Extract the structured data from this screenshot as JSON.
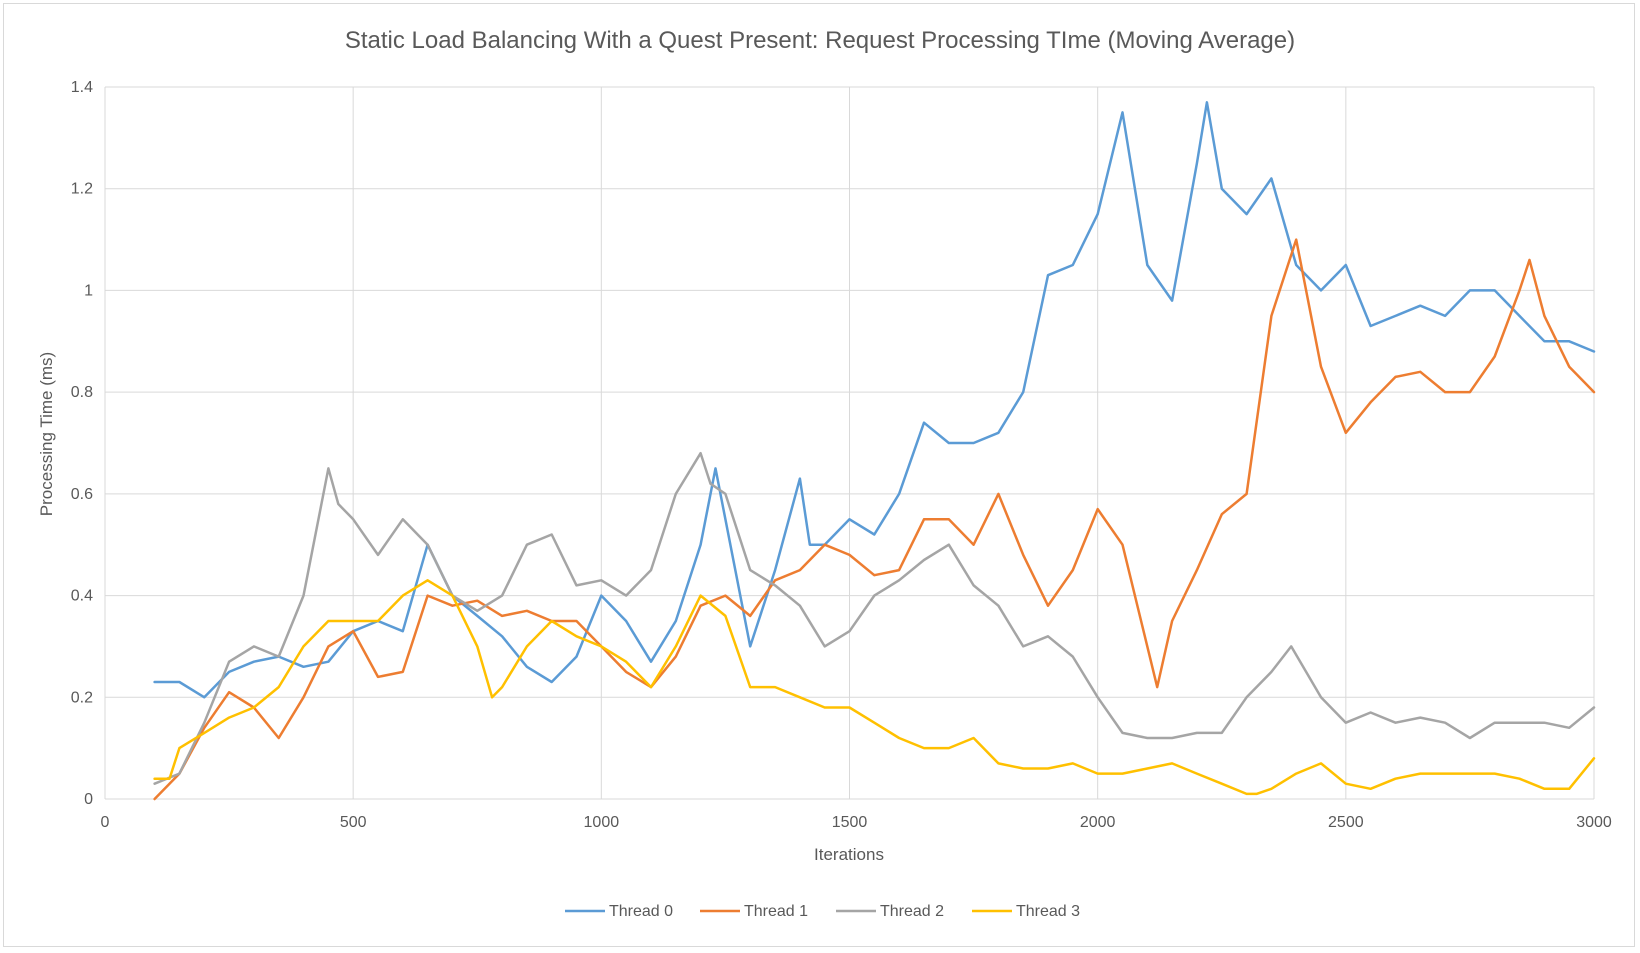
{
  "chart_data": {
    "type": "line",
    "title": "Static Load Balancing With a Quest Present: Request Processing TIme (Moving Average)",
    "xlabel": "Iterations",
    "ylabel": "Processing Time (ms)",
    "xlim": [
      0,
      3000
    ],
    "ylim": [
      0,
      1.4
    ],
    "xticks": [
      0,
      500,
      1000,
      1500,
      2000,
      2500,
      3000
    ],
    "yticks": [
      0,
      0.2,
      0.4,
      0.6,
      0.8,
      1,
      1.2,
      1.4
    ],
    "grid": true,
    "legend_position": "bottom",
    "series": [
      {
        "name": "Thread 0",
        "color": "#5b9bd5",
        "x": [
          100,
          150,
          200,
          250,
          300,
          350,
          400,
          450,
          500,
          550,
          600,
          650,
          700,
          750,
          800,
          850,
          900,
          950,
          1000,
          1050,
          1100,
          1150,
          1200,
          1230,
          1250,
          1300,
          1350,
          1400,
          1420,
          1450,
          1500,
          1550,
          1600,
          1650,
          1700,
          1750,
          1800,
          1850,
          1900,
          1950,
          2000,
          2050,
          2100,
          2150,
          2200,
          2220,
          2250,
          2300,
          2350,
          2400,
          2450,
          2500,
          2550,
          2600,
          2650,
          2700,
          2750,
          2800,
          2850,
          2900,
          2950,
          3000
        ],
        "y": [
          0.23,
          0.23,
          0.2,
          0.25,
          0.27,
          0.28,
          0.26,
          0.27,
          0.33,
          0.35,
          0.33,
          0.5,
          0.4,
          0.36,
          0.32,
          0.26,
          0.23,
          0.28,
          0.4,
          0.35,
          0.27,
          0.35,
          0.5,
          0.65,
          0.55,
          0.3,
          0.45,
          0.63,
          0.5,
          0.5,
          0.55,
          0.52,
          0.6,
          0.74,
          0.7,
          0.7,
          0.72,
          0.8,
          1.03,
          1.05,
          1.15,
          1.35,
          1.05,
          0.98,
          1.25,
          1.37,
          1.2,
          1.15,
          1.22,
          1.05,
          1.0,
          1.05,
          0.93,
          0.95,
          0.97,
          0.95,
          1.0,
          1.0,
          0.95,
          0.9,
          0.9,
          0.88
        ]
      },
      {
        "name": "Thread 1",
        "color": "#ed7d31",
        "x": [
          100,
          150,
          200,
          250,
          300,
          350,
          400,
          450,
          500,
          550,
          600,
          650,
          700,
          750,
          800,
          850,
          900,
          950,
          1000,
          1050,
          1100,
          1150,
          1200,
          1250,
          1300,
          1350,
          1400,
          1450,
          1500,
          1550,
          1600,
          1650,
          1700,
          1750,
          1800,
          1850,
          1900,
          1950,
          2000,
          2050,
          2100,
          2120,
          2150,
          2200,
          2250,
          2300,
          2350,
          2400,
          2450,
          2500,
          2550,
          2600,
          2650,
          2700,
          2750,
          2800,
          2850,
          2870,
          2900,
          2950,
          3000
        ],
        "y": [
          0.0,
          0.05,
          0.14,
          0.21,
          0.18,
          0.12,
          0.2,
          0.3,
          0.33,
          0.24,
          0.25,
          0.4,
          0.38,
          0.39,
          0.36,
          0.37,
          0.35,
          0.35,
          0.3,
          0.25,
          0.22,
          0.28,
          0.38,
          0.4,
          0.36,
          0.43,
          0.45,
          0.5,
          0.48,
          0.44,
          0.45,
          0.55,
          0.55,
          0.5,
          0.6,
          0.48,
          0.38,
          0.45,
          0.57,
          0.5,
          0.3,
          0.22,
          0.35,
          0.45,
          0.56,
          0.6,
          0.95,
          1.1,
          0.85,
          0.72,
          0.78,
          0.83,
          0.84,
          0.8,
          0.8,
          0.87,
          1.0,
          1.06,
          0.95,
          0.85,
          0.8
        ]
      },
      {
        "name": "Thread 2",
        "color": "#a5a5a5",
        "x": [
          100,
          150,
          200,
          250,
          300,
          350,
          400,
          450,
          470,
          500,
          550,
          600,
          650,
          700,
          750,
          800,
          850,
          900,
          950,
          1000,
          1050,
          1100,
          1150,
          1200,
          1220,
          1250,
          1300,
          1350,
          1400,
          1450,
          1500,
          1550,
          1600,
          1650,
          1700,
          1750,
          1800,
          1850,
          1900,
          1950,
          2000,
          2050,
          2100,
          2150,
          2200,
          2250,
          2300,
          2350,
          2390,
          2450,
          2500,
          2550,
          2600,
          2650,
          2700,
          2750,
          2800,
          2850,
          2900,
          2950,
          3000
        ],
        "y": [
          0.03,
          0.05,
          0.15,
          0.27,
          0.3,
          0.28,
          0.4,
          0.65,
          0.58,
          0.55,
          0.48,
          0.55,
          0.5,
          0.4,
          0.37,
          0.4,
          0.5,
          0.52,
          0.42,
          0.43,
          0.4,
          0.45,
          0.6,
          0.68,
          0.62,
          0.6,
          0.45,
          0.42,
          0.38,
          0.3,
          0.33,
          0.4,
          0.43,
          0.47,
          0.5,
          0.42,
          0.38,
          0.3,
          0.32,
          0.28,
          0.2,
          0.13,
          0.12,
          0.12,
          0.13,
          0.13,
          0.2,
          0.25,
          0.3,
          0.2,
          0.15,
          0.17,
          0.15,
          0.16,
          0.15,
          0.12,
          0.15,
          0.15,
          0.15,
          0.14,
          0.18
        ]
      },
      {
        "name": "Thread 3",
        "color": "#ffc000",
        "x": [
          100,
          130,
          150,
          200,
          250,
          300,
          350,
          400,
          450,
          500,
          550,
          600,
          650,
          700,
          750,
          780,
          800,
          850,
          900,
          950,
          1000,
          1050,
          1100,
          1150,
          1200,
          1250,
          1300,
          1350,
          1400,
          1450,
          1500,
          1550,
          1600,
          1650,
          1700,
          1750,
          1800,
          1850,
          1900,
          1950,
          2000,
          2050,
          2100,
          2150,
          2200,
          2250,
          2300,
          2320,
          2350,
          2400,
          2450,
          2500,
          2550,
          2600,
          2650,
          2700,
          2750,
          2800,
          2850,
          2900,
          2950,
          3000
        ],
        "y": [
          0.04,
          0.04,
          0.1,
          0.13,
          0.16,
          0.18,
          0.22,
          0.3,
          0.35,
          0.35,
          0.35,
          0.4,
          0.43,
          0.4,
          0.3,
          0.2,
          0.22,
          0.3,
          0.35,
          0.32,
          0.3,
          0.27,
          0.22,
          0.3,
          0.4,
          0.36,
          0.22,
          0.22,
          0.2,
          0.18,
          0.18,
          0.15,
          0.12,
          0.1,
          0.1,
          0.12,
          0.07,
          0.06,
          0.06,
          0.07,
          0.05,
          0.05,
          0.06,
          0.07,
          0.05,
          0.03,
          0.01,
          0.01,
          0.02,
          0.05,
          0.07,
          0.03,
          0.02,
          0.04,
          0.05,
          0.05,
          0.05,
          0.05,
          0.04,
          0.02,
          0.02,
          0.08
        ]
      }
    ]
  }
}
